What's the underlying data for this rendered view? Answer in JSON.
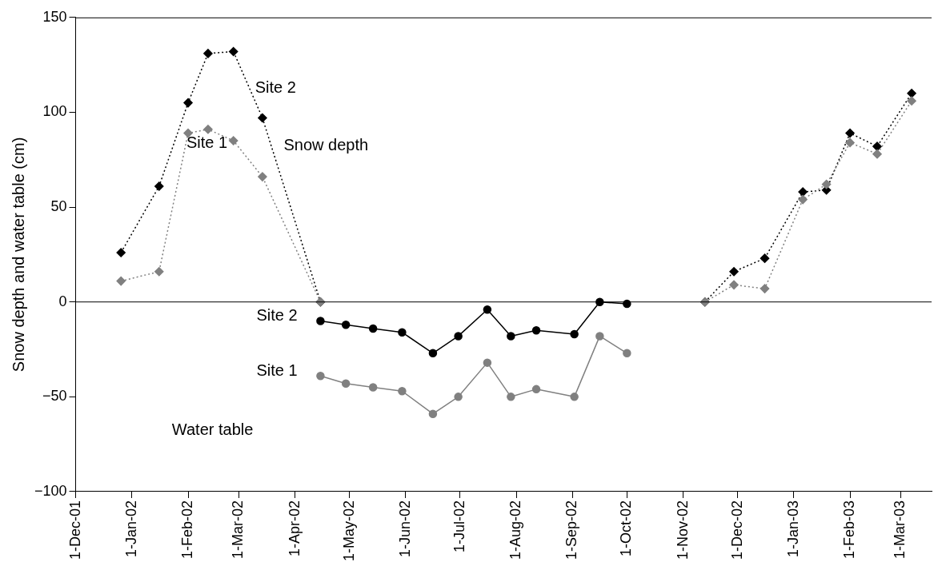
{
  "chart_data": {
    "type": "line",
    "ylabel": "Snow depth and water table (cm)",
    "xlim": [
      "2001-12-01",
      "2003-03-18"
    ],
    "xticks": [
      {
        "value": "2001-12-01",
        "label": "1-Dec-01"
      },
      {
        "value": "2002-01-01",
        "label": "1-Jan-02"
      },
      {
        "value": "2002-02-01",
        "label": "1-Feb-02"
      },
      {
        "value": "2002-03-01",
        "label": "1-Mar-02"
      },
      {
        "value": "2002-04-01",
        "label": "1-Apr-02"
      },
      {
        "value": "2002-05-01",
        "label": "1-May-02"
      },
      {
        "value": "2002-06-01",
        "label": "1-Jun-02"
      },
      {
        "value": "2002-07-01",
        "label": "1-Jul-02"
      },
      {
        "value": "2002-08-01",
        "label": "1-Aug-02"
      },
      {
        "value": "2002-09-01",
        "label": "1-Sep-02"
      },
      {
        "value": "2002-10-01",
        "label": "1-Oct-02"
      },
      {
        "value": "2002-11-01",
        "label": "1-Nov-02"
      },
      {
        "value": "2002-12-01",
        "label": "1-Dec-02"
      },
      {
        "value": "2003-01-01",
        "label": "1-Jan-03"
      },
      {
        "value": "2003-02-01",
        "label": "1-Feb-03"
      },
      {
        "value": "2003-03-01",
        "label": "1-Mar-03"
      }
    ],
    "ylim": [
      -100,
      150
    ],
    "yticks": [
      -100,
      -50,
      0,
      50,
      100,
      150
    ],
    "grid": false,
    "legend": false,
    "ref_lines": [
      {
        "axis": "y",
        "value": 0,
        "color": "#000000"
      }
    ],
    "series": [
      {
        "name": "Site 1",
        "color": "#808080",
        "marker": "diamond",
        "line_style": "dotted",
        "x": [
          "2001-12-26",
          "2002-01-16",
          "2002-02-01",
          "2002-02-12",
          "2002-02-26",
          "2002-03-14",
          "2002-04-15",
          "2002-08-01",
          "2002-11-13",
          "2002-11-29",
          "2002-12-16",
          "2003-01-06",
          "2003-01-19",
          "2003-02-01",
          "2003-02-16",
          "2003-03-07"
        ],
        "values": [
          11,
          16,
          89,
          91,
          85,
          66,
          0,
          null,
          0,
          9,
          7,
          54,
          62,
          84,
          78,
          106
        ]
      },
      {
        "name": "Site 2",
        "color": "#000000",
        "marker": "diamond",
        "line_style": "dotted",
        "x": [
          "2001-12-26",
          "2002-01-16",
          "2002-02-01",
          "2002-02-12",
          "2002-02-26",
          "2002-03-14",
          "2002-04-15",
          "2002-08-01",
          "2002-11-13",
          "2002-11-29",
          "2002-12-16",
          "2003-01-06",
          "2003-01-19",
          "2003-02-01",
          "2003-02-16",
          "2003-03-07"
        ],
        "values": [
          26,
          61,
          105,
          131,
          132,
          97,
          0,
          null,
          0,
          16,
          23,
          58,
          59,
          89,
          82,
          110
        ]
      },
      {
        "name": "Site 1",
        "color": "#808080",
        "marker": "circle",
        "line_style": "solid",
        "x": [
          "2002-04-15",
          "2002-04-29",
          "2002-05-14",
          "2002-05-30",
          "2002-06-16",
          "2002-06-30",
          "2002-07-16",
          "2002-07-29",
          "2002-08-12",
          "2002-09-02",
          "2002-09-16",
          "2002-10-01"
        ],
        "values": [
          -39,
          -43,
          -45,
          -47,
          -59,
          -50,
          -32,
          -50,
          -46,
          -50,
          -18,
          -27
        ]
      },
      {
        "name": "Site 2",
        "color": "#000000",
        "marker": "circle",
        "line_style": "solid",
        "x": [
          "2002-04-15",
          "2002-04-29",
          "2002-05-14",
          "2002-05-30",
          "2002-06-16",
          "2002-06-30",
          "2002-07-16",
          "2002-07-29",
          "2002-08-12",
          "2002-09-02",
          "2002-09-16",
          "2002-10-01"
        ],
        "values": [
          -10,
          -12,
          -14,
          -16,
          -27,
          -18,
          -4,
          -18,
          -15,
          -17,
          0,
          -1
        ]
      }
    ],
    "annotations": [
      "Snow depth",
      "Water table"
    ]
  }
}
